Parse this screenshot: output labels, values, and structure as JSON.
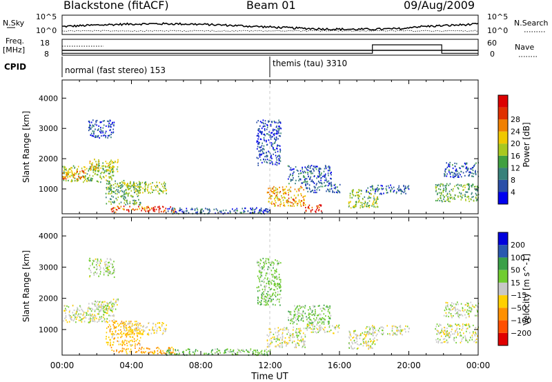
{
  "header": {
    "station": "Blackstone (fitACF)",
    "beam": "Beam 01",
    "date": "09/Aug/2009"
  },
  "noise_panel": {
    "left_label": "N.Sky",
    "right_label": "N.Search",
    "left_ticks": [
      "10^5",
      "10^0"
    ],
    "right_ticks": [
      "10^5",
      "10^0"
    ]
  },
  "freq_panel": {
    "left_label_1": "Freq.",
    "left_label_2": "[MHz]",
    "right_label": "Nave",
    "left_ticks": [
      "18",
      "8"
    ],
    "right_ticks": [
      "60",
      "0"
    ],
    "nave_steps": [
      {
        "t0": 0,
        "t1": 17.9,
        "value": 5
      },
      {
        "t0": 17.9,
        "t1": 21.9,
        "value": 40
      },
      {
        "t0": 21.9,
        "t1": 24,
        "value": 5
      }
    ]
  },
  "cpid": {
    "label": "CPID",
    "segments": [
      {
        "start_h": 0.0,
        "text": "normal (fast stereo) 153"
      },
      {
        "start_h": 12.0,
        "text": "themis (tau) 3310"
      }
    ]
  },
  "colors": {
    "power": [
      "#0000ee",
      "#2a4fa8",
      "#38817a",
      "#40a040",
      "#a8c820",
      "#f0c800",
      "#f08000",
      "#e03000",
      "#dc0000"
    ],
    "velocity": [
      "#0000dd",
      "#2a58b0",
      "#3aa048",
      "#70cc30",
      "#c8c8c8",
      "#ffd000",
      "#ff9000",
      "#ff5000",
      "#e00000"
    ]
  },
  "time_axis": {
    "ticks": [
      "00:00",
      "04:00",
      "08:00",
      "12:00",
      "16:00",
      "20:00",
      "00:00"
    ],
    "label": "Time UT"
  },
  "chart_data": [
    {
      "type": "heatmap",
      "title": "",
      "quantity": "Power",
      "xlabel": "Time UT",
      "ylabel": "Slant Range [km]",
      "x_range_hours": [
        0,
        24
      ],
      "ylim": [
        180,
        4600
      ],
      "yticks": [
        "1000",
        "2000",
        "3000",
        "4000"
      ],
      "colorbar": {
        "label": "Power [dB]",
        "ticks": [
          "4",
          "8",
          "12",
          "16",
          "20",
          "24",
          "28"
        ],
        "range": [
          0,
          30
        ]
      },
      "regions": [
        {
          "t": [
            0.0,
            3.0
          ],
          "r": [
            1250,
            1800
          ],
          "v": 14
        },
        {
          "t": [
            0.0,
            1.3
          ],
          "r": [
            1350,
            1650
          ],
          "v": 22
        },
        {
          "t": [
            1.5,
            3.2
          ],
          "r": [
            1600,
            2000
          ],
          "v": 16
        },
        {
          "t": [
            1.5,
            3.0
          ],
          "r": [
            2700,
            3300
          ],
          "v": 5
        },
        {
          "t": [
            2.5,
            4.5
          ],
          "r": [
            500,
            1300
          ],
          "v": 12
        },
        {
          "t": [
            3.5,
            6.0
          ],
          "r": [
            850,
            1250
          ],
          "v": 14
        },
        {
          "t": [
            2.8,
            6.5
          ],
          "r": [
            250,
            450
          ],
          "v": 24
        },
        {
          "t": [
            6.0,
            12.0
          ],
          "r": [
            200,
            400
          ],
          "v": 6
        },
        {
          "t": [
            11.2,
            12.6
          ],
          "r": [
            1800,
            3300
          ],
          "v": 5
        },
        {
          "t": [
            11.8,
            14.0
          ],
          "r": [
            450,
            1100
          ],
          "v": 20
        },
        {
          "t": [
            13.0,
            15.5
          ],
          "r": [
            1200,
            1800
          ],
          "v": 6
        },
        {
          "t": [
            14.0,
            16.0
          ],
          "r": [
            900,
            1200
          ],
          "v": 6
        },
        {
          "t": [
            14.0,
            15.0
          ],
          "r": [
            250,
            500
          ],
          "v": 26
        },
        {
          "t": [
            16.5,
            18.2
          ],
          "r": [
            400,
            1000
          ],
          "v": 14
        },
        {
          "t": [
            17.5,
            20.0
          ],
          "r": [
            850,
            1150
          ],
          "v": 6
        },
        {
          "t": [
            21.5,
            24.0
          ],
          "r": [
            600,
            1200
          ],
          "v": 12
        },
        {
          "t": [
            22.0,
            24.0
          ],
          "r": [
            1400,
            1900
          ],
          "v": 6
        }
      ]
    },
    {
      "type": "heatmap",
      "title": "",
      "quantity": "Velocity",
      "xlabel": "Time UT",
      "ylabel": "Slant Range [km]",
      "x_range_hours": [
        0,
        24
      ],
      "ylim": [
        180,
        4600
      ],
      "yticks": [
        "1000",
        "2000",
        "3000",
        "4000"
      ],
      "colorbar": {
        "label": "Velocity [m s^-1]",
        "ticks": [
          "200",
          "100",
          "50",
          "15",
          "−15",
          "−50",
          "−100",
          "−200"
        ],
        "range": [
          -250,
          250
        ]
      },
      "regions": [
        {
          "t": [
            0.0,
            3.0
          ],
          "r": [
            1250,
            1800
          ],
          "v": 0
        },
        {
          "t": [
            1.5,
            3.2
          ],
          "r": [
            1600,
            2000
          ],
          "v": 0
        },
        {
          "t": [
            1.5,
            3.0
          ],
          "r": [
            2700,
            3300
          ],
          "v": 10
        },
        {
          "t": [
            2.5,
            4.5
          ],
          "r": [
            500,
            1300
          ],
          "v": -40
        },
        {
          "t": [
            3.5,
            6.0
          ],
          "r": [
            850,
            1250
          ],
          "v": -20
        },
        {
          "t": [
            2.8,
            6.5
          ],
          "r": [
            250,
            450
          ],
          "v": -60
        },
        {
          "t": [
            6.0,
            12.0
          ],
          "r": [
            200,
            400
          ],
          "v": 40
        },
        {
          "t": [
            11.2,
            12.6
          ],
          "r": [
            1800,
            3300
          ],
          "v": 30
        },
        {
          "t": [
            11.8,
            14.0
          ],
          "r": [
            450,
            1100
          ],
          "v": 0
        },
        {
          "t": [
            13.0,
            15.5
          ],
          "r": [
            1200,
            1800
          ],
          "v": 30
        },
        {
          "t": [
            14.0,
            16.0
          ],
          "r": [
            900,
            1200
          ],
          "v": 0
        },
        {
          "t": [
            16.5,
            18.2
          ],
          "r": [
            400,
            1000
          ],
          "v": 0
        },
        {
          "t": [
            17.5,
            20.0
          ],
          "r": [
            850,
            1150
          ],
          "v": 0
        },
        {
          "t": [
            21.5,
            24.0
          ],
          "r": [
            600,
            1200
          ],
          "v": 0
        },
        {
          "t": [
            22.0,
            24.0
          ],
          "r": [
            1400,
            1900
          ],
          "v": 5
        }
      ]
    }
  ]
}
